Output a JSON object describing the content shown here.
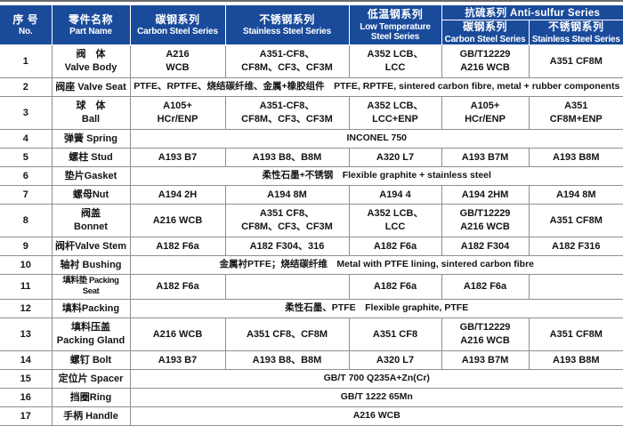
{
  "page": {
    "accent_blue": "#1a4b9b",
    "border_gray": "#8f8f8f",
    "header_text_color": "#ffffff"
  },
  "table": {
    "header": {
      "no_zh": "序 号",
      "no_en": "No.",
      "part_zh": "零件名称",
      "part_en": "Part Name",
      "carbon_zh": "碳钢系列",
      "carbon_en": "Carbon Steel Series",
      "stainless_zh": "不锈钢系列",
      "stainless_en": "Stainless Steel Series",
      "lowtemp_zh": "低温钢系列",
      "lowtemp_en": "Low Temperature Steel Series",
      "anti_sulfur_group": "抗硫系列 Anti-sulfur Series",
      "as_carbon_zh": "碳钢系列",
      "as_carbon_en": "Carbon Steel Series",
      "as_stainless_zh": "不锈钢系列",
      "as_stainless_en": "Stainless Steel Series"
    },
    "rows": [
      {
        "no": "1",
        "part": "阀　体\nValve Body",
        "cells": [
          {
            "t": "A216\nWCB"
          },
          {
            "t": "A351-CF8、\nCF8M、CF3、CF3M"
          },
          {
            "t": "A352 LCB、\nLCC"
          },
          {
            "t": "GB/T12229\nA216 WCB"
          },
          {
            "t": "A351 CF8M"
          }
        ]
      },
      {
        "no": "2",
        "part": "阀座 Valve Seat",
        "cells": [
          {
            "t": "PTFE、RPTFE、烧结碳纤维、金属+橡胶组件　PTFE, RPTFE, sintered carbon fibre, metal + rubber components",
            "span": 5
          }
        ]
      },
      {
        "no": "3",
        "part": "球　体\nBall",
        "cells": [
          {
            "t": "A105+\nHCr/ENP"
          },
          {
            "t": "A351-CF8、\nCF8M、CF3、CF3M"
          },
          {
            "t": "A352 LCB、\nLCC+ENP"
          },
          {
            "t": "A105+\nHCr/ENP"
          },
          {
            "t": "A351\nCF8M+ENP"
          }
        ]
      },
      {
        "no": "4",
        "part": "弹簧 Spring",
        "cells": [
          {
            "t": "INCONEL 750",
            "span": 5
          }
        ]
      },
      {
        "no": "5",
        "part": "螺柱 Stud",
        "cells": [
          {
            "t": "A193 B7"
          },
          {
            "t": "A193 B8、B8M"
          },
          {
            "t": "A320 L7"
          },
          {
            "t": "A193 B7M"
          },
          {
            "t": "A193 B8M"
          }
        ]
      },
      {
        "no": "6",
        "part": "垫片Gasket",
        "cells": [
          {
            "t": "柔性石墨+不锈钢　Flexible graphite + stainless steel",
            "span": 5
          }
        ]
      },
      {
        "no": "7",
        "part": "螺母Nut",
        "cells": [
          {
            "t": "A194 2H"
          },
          {
            "t": "A194 8M"
          },
          {
            "t": "A194 4"
          },
          {
            "t": "A194 2HM"
          },
          {
            "t": "A194 8M"
          }
        ]
      },
      {
        "no": "8",
        "part": "阀盖\nBonnet",
        "cells": [
          {
            "t": "A216 WCB"
          },
          {
            "t": "A351 CF8、\nCF8M、CF3、CF3M"
          },
          {
            "t": "A352 LCB、\nLCC"
          },
          {
            "t": "GB/T12229\nA216 WCB"
          },
          {
            "t": "A351 CF8M"
          }
        ]
      },
      {
        "no": "9",
        "part": "阀杆Valve Stem",
        "cells": [
          {
            "t": "A182 F6a"
          },
          {
            "t": "A182 F304、316"
          },
          {
            "t": "A182 F6a"
          },
          {
            "t": "A182 F304"
          },
          {
            "t": "A182 F316"
          }
        ]
      },
      {
        "no": "10",
        "part": "轴衬 Bushing",
        "cells": [
          {
            "t": "金属衬PTFE；烧结碳纤维　Metal with PTFE lining, sintered carbon fibre",
            "span": 5
          }
        ]
      },
      {
        "no": "11",
        "part": "填料垫 Packing Seat",
        "compact": true,
        "cells": [
          {
            "t": "A182 F6a"
          },
          {
            "t": ""
          },
          {
            "t": "A182 F6a"
          },
          {
            "t": "A182 F6a"
          },
          {
            "t": ""
          }
        ]
      },
      {
        "no": "12",
        "part": "填料Packing",
        "cells": [
          {
            "t": "柔性石墨、PTFE　Flexible graphite, PTFE",
            "span": 5
          }
        ]
      },
      {
        "no": "13",
        "part": "填料压盖\nPacking Gland",
        "cells": [
          {
            "t": "A216 WCB"
          },
          {
            "t": "A351 CF8、CF8M"
          },
          {
            "t": "A351 CF8"
          },
          {
            "t": "GB/T12229\nA216 WCB"
          },
          {
            "t": "A351 CF8M"
          }
        ]
      },
      {
        "no": "14",
        "part": "螺钉 Bolt",
        "cells": [
          {
            "t": "A193 B7"
          },
          {
            "t": "A193 B8、B8M"
          },
          {
            "t": "A320 L7"
          },
          {
            "t": "A193 B7M"
          },
          {
            "t": "A193 B8M"
          }
        ]
      },
      {
        "no": "15",
        "part": "定位片 Spacer",
        "cells": [
          {
            "t": "GB/T 700 Q235A+Zn(Cr)",
            "span": 5
          }
        ]
      },
      {
        "no": "16",
        "part": "挡圈Ring",
        "cells": [
          {
            "t": "GB/T 1222 65Mn",
            "span": 5
          }
        ]
      },
      {
        "no": "17",
        "part": "手柄 Handle",
        "cells": [
          {
            "t": "A216 WCB",
            "span": 5
          }
        ]
      }
    ]
  }
}
